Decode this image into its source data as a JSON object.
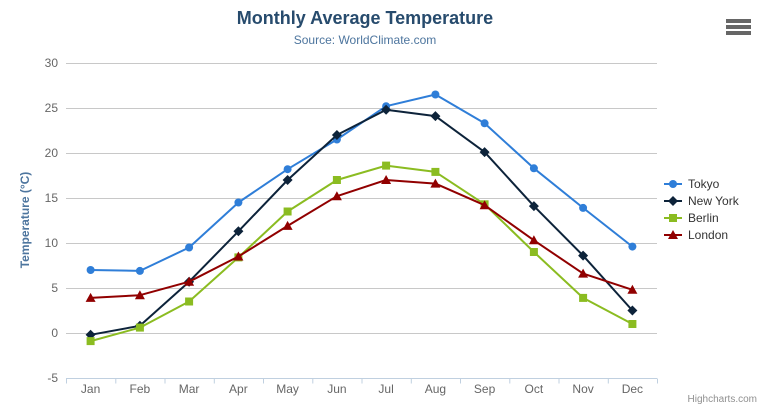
{
  "chart_data": {
    "type": "line",
    "title": "Monthly Average Temperature",
    "subtitle": "Source: WorldClimate.com",
    "xlabel": "",
    "ylabel": "Temperature (°C)",
    "ylim": [
      -5,
      30
    ],
    "ytick_step": 5,
    "grid": true,
    "legend_position": "right",
    "categories": [
      "Jan",
      "Feb",
      "Mar",
      "Apr",
      "May",
      "Jun",
      "Jul",
      "Aug",
      "Sep",
      "Oct",
      "Nov",
      "Dec"
    ],
    "series": [
      {
        "name": "Tokyo",
        "color": "#2f7ed8",
        "marker": "circle",
        "values": [
          7.0,
          6.9,
          9.5,
          14.5,
          18.2,
          21.5,
          25.2,
          26.5,
          23.3,
          18.3,
          13.9,
          9.6
        ]
      },
      {
        "name": "New York",
        "color": "#0d233a",
        "marker": "diamond",
        "values": [
          -0.2,
          0.8,
          5.7,
          11.3,
          17.0,
          22.0,
          24.8,
          24.1,
          20.1,
          14.1,
          8.6,
          2.5
        ]
      },
      {
        "name": "Berlin",
        "color": "#8bbc21",
        "marker": "square",
        "values": [
          -0.9,
          0.6,
          3.5,
          8.4,
          13.5,
          17.0,
          18.6,
          17.9,
          14.3,
          9.0,
          3.9,
          1.0
        ]
      },
      {
        "name": "London",
        "color": "#910000",
        "marker": "triangle",
        "values": [
          3.9,
          4.2,
          5.7,
          8.5,
          11.9,
          15.2,
          17.0,
          16.6,
          14.2,
          10.3,
          6.6,
          4.8
        ]
      }
    ]
  },
  "credits": "Highcharts.com",
  "colors": {
    "title": "#274b6d",
    "subtitle": "#4d759e",
    "axis_title": "#4d759e",
    "tick_label": "#666666",
    "grid": "#c8c8c8",
    "axis_line": "#c0d0e0",
    "legend_text": "#333333",
    "credits": "#909090",
    "menu_icon": "#666666"
  }
}
